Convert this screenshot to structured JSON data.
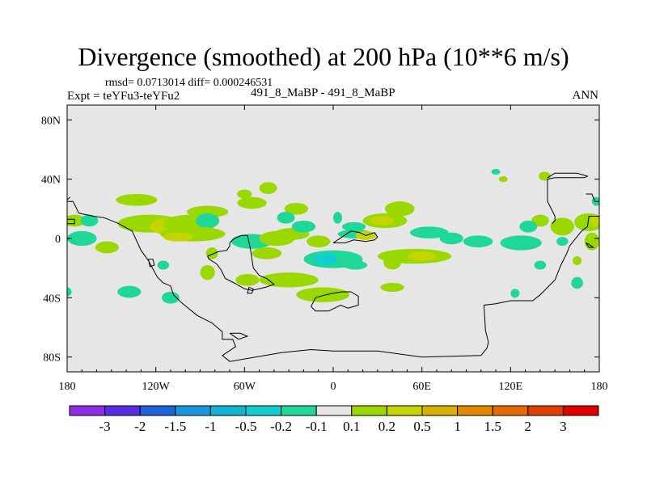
{
  "header": {
    "title": "Divergence (smoothed) at 200 hPa (10**6 m/s)",
    "stats": "rmsd= 0.0713014 diff= 0.000246531",
    "expt": "Expt = teYFu3-teYFu2",
    "center_label": "491_8_MaBP - 491_8_MaBP",
    "season": "ANN"
  },
  "chart_data": {
    "type": "heatmap",
    "title": "Divergence (smoothed) at 200 hPa (10**6 m/s)",
    "xlabel": "",
    "ylabel": "",
    "xlim": [
      -180,
      180
    ],
    "ylim": [
      -90,
      90
    ],
    "x_ticks": [
      {
        "value": -180,
        "label": "180"
      },
      {
        "value": -120,
        "label": "120W"
      },
      {
        "value": -60,
        "label": "60W"
      },
      {
        "value": 0,
        "label": "0"
      },
      {
        "value": 60,
        "label": "60E"
      },
      {
        "value": 120,
        "label": "120E"
      },
      {
        "value": 180,
        "label": "180"
      }
    ],
    "y_ticks": [
      {
        "value": 80,
        "label": "80N"
      },
      {
        "value": 40,
        "label": "40N"
      },
      {
        "value": 0,
        "label": "0"
      },
      {
        "value": -40,
        "label": "40S"
      },
      {
        "value": -80,
        "label": "80S"
      }
    ],
    "colorbar": {
      "colors": [
        "#8e2ce6",
        "#5a2ce6",
        "#1f62d9",
        "#1898d8",
        "#12b3cf",
        "#12cfcf",
        "#20d79a",
        "#e6e6e6",
        "#9ad800",
        "#c6d400",
        "#d8b000",
        "#e08a00",
        "#e26a00",
        "#e04000",
        "#e00000"
      ],
      "labels": [
        "-3",
        "-2",
        "-1.5",
        "-1",
        "-0.5",
        "-0.2",
        "-0.1",
        "0.1",
        "0.2",
        "0.5",
        "1",
        "1.5",
        "2",
        "3"
      ]
    },
    "features": [
      {
        "lon": -133,
        "lat": 26,
        "rlon": 14,
        "rlat": 4,
        "color": "#9ad800"
      },
      {
        "lon": -85,
        "lat": 18,
        "rlon": 14,
        "rlat": 4,
        "color": "#9ad800"
      },
      {
        "lon": -55,
        "lat": 24,
        "rlon": 10,
        "rlat": 4,
        "color": "#9ad800"
      },
      {
        "lon": -25,
        "lat": 20,
        "rlon": 8,
        "rlat": 4,
        "color": "#9ad800"
      },
      {
        "lon": -44,
        "lat": 34,
        "rlon": 6,
        "rlat": 4,
        "color": "#9ad800"
      },
      {
        "lon": -175,
        "lat": 12,
        "rlon": 8,
        "rlat": 4,
        "color": "#9ad800"
      },
      {
        "lon": -124,
        "lat": 10,
        "rlon": 22,
        "rlat": 6,
        "color": "#9ad800"
      },
      {
        "lon": -108,
        "lat": 8,
        "rlon": 16,
        "rlat": 6,
        "color": "#c6d400"
      },
      {
        "lon": -97,
        "lat": 10,
        "rlon": 18,
        "rlat": 6,
        "color": "#9ad800"
      },
      {
        "lon": -85,
        "lat": 12,
        "rlon": 8,
        "rlat": 5,
        "color": "#20d79a"
      },
      {
        "lon": -95,
        "lat": 3,
        "rlon": 22,
        "rlat": 5,
        "color": "#9ad800"
      },
      {
        "lon": -105,
        "lat": 1,
        "rlon": 10,
        "rlat": 3,
        "color": "#c6d400"
      },
      {
        "lon": -170,
        "lat": 0,
        "rlon": 10,
        "rlat": 5,
        "color": "#20d79a"
      },
      {
        "lon": -55,
        "lat": -2,
        "rlon": 14,
        "rlat": 5,
        "color": "#20d79a"
      },
      {
        "lon": -38,
        "lat": 0,
        "rlon": 12,
        "rlat": 5,
        "color": "#9ad800"
      },
      {
        "lon": -28,
        "lat": 3,
        "rlon": 12,
        "rlat": 4,
        "color": "#9ad800"
      },
      {
        "lon": -20,
        "lat": 8,
        "rlon": 8,
        "rlat": 4,
        "color": "#20d79a"
      },
      {
        "lon": -32,
        "lat": 14,
        "rlon": 6,
        "rlat": 4,
        "color": "#20d79a"
      },
      {
        "lon": -10,
        "lat": -2,
        "rlon": 8,
        "rlat": 4,
        "color": "#9ad800"
      },
      {
        "lon": 3,
        "lat": 14,
        "rlon": 3,
        "rlat": 4,
        "color": "#20d79a"
      },
      {
        "lon": 14,
        "lat": 8,
        "rlon": 8,
        "rlat": 3,
        "color": "#20d79a"
      },
      {
        "lon": 35,
        "lat": 12,
        "rlon": 15,
        "rlat": 5,
        "color": "#9ad800"
      },
      {
        "lon": 33,
        "lat": 12,
        "rlon": 8,
        "rlat": 3,
        "color": "#c6d400"
      },
      {
        "lon": 45,
        "lat": 20,
        "rlon": 10,
        "rlat": 5,
        "color": "#9ad800"
      },
      {
        "lon": 15,
        "lat": 3,
        "rlon": 12,
        "rlat": 3,
        "color": "#20d79a"
      },
      {
        "lon": 22,
        "lat": 2,
        "rlon": 7,
        "rlat": 3,
        "color": "#c6d400"
      },
      {
        "lon": 65,
        "lat": 4,
        "rlon": 13,
        "rlat": 4,
        "color": "#20d79a"
      },
      {
        "lon": 80,
        "lat": 0,
        "rlon": 8,
        "rlat": 4,
        "color": "#20d79a"
      },
      {
        "lon": 98,
        "lat": -2,
        "rlon": 10,
        "rlat": 4,
        "color": "#20d79a"
      },
      {
        "lon": 127,
        "lat": -3,
        "rlon": 14,
        "rlat": 5,
        "color": "#20d79a"
      },
      {
        "lon": 140,
        "lat": 12,
        "rlon": 6,
        "rlat": 4,
        "color": "#9ad800"
      },
      {
        "lon": 132,
        "lat": 8,
        "rlon": 6,
        "rlat": 4,
        "color": "#20d79a"
      },
      {
        "lon": 155,
        "lat": 8,
        "rlon": 8,
        "rlat": 6,
        "color": "#9ad800"
      },
      {
        "lon": 155,
        "lat": -2,
        "rlon": 4,
        "rlat": 3,
        "color": "#20d79a"
      },
      {
        "lon": 173,
        "lat": 11,
        "rlon": 10,
        "rlat": 6,
        "color": "#9ad800"
      },
      {
        "lon": 177,
        "lat": 12,
        "rlon": 3,
        "rlat": 4,
        "color": "#c6d400"
      },
      {
        "lon": 175,
        "lat": -2,
        "rlon": 5,
        "rlat": 6,
        "color": "#9ad800"
      },
      {
        "lon": 178,
        "lat": 25,
        "rlon": 3,
        "rlat": 3,
        "color": "#20d79a"
      },
      {
        "lon": 143,
        "lat": 42,
        "rlon": 4,
        "rlat": 3,
        "color": "#9ad800"
      },
      {
        "lon": 110,
        "lat": 45,
        "rlon": 3,
        "rlat": 2,
        "color": "#20d79a"
      },
      {
        "lon": 115,
        "lat": 40,
        "rlon": 3,
        "rlat": 2,
        "color": "#9ad800"
      },
      {
        "lon": 140,
        "lat": -18,
        "rlon": 4,
        "rlat": 3,
        "color": "#20d79a"
      },
      {
        "lon": 165,
        "lat": -15,
        "rlon": 3,
        "rlat": 3,
        "color": "#9ad800"
      },
      {
        "lon": 165,
        "lat": -30,
        "rlon": 4,
        "rlat": 4,
        "color": "#20d79a"
      },
      {
        "lon": -82,
        "lat": -10,
        "rlon": 4,
        "rlat": 4,
        "color": "#9ad800"
      },
      {
        "lon": -85,
        "lat": -23,
        "rlon": 5,
        "rlat": 5,
        "color": "#9ad800"
      },
      {
        "lon": -58,
        "lat": -28,
        "rlon": 8,
        "rlat": 4,
        "color": "#9ad800"
      },
      {
        "lon": -45,
        "lat": -10,
        "rlon": 10,
        "rlat": 4,
        "color": "#9ad800"
      },
      {
        "lon": 0,
        "lat": -14,
        "rlon": 20,
        "rlat": 6,
        "color": "#20d79a"
      },
      {
        "lon": -5,
        "lat": -14,
        "rlon": 8,
        "rlat": 4,
        "color": "#12cfcf"
      },
      {
        "lon": 55,
        "lat": -12,
        "rlon": 25,
        "rlat": 5,
        "color": "#9ad800"
      },
      {
        "lon": 60,
        "lat": -12,
        "rlon": 10,
        "rlat": 3,
        "color": "#c6d400"
      },
      {
        "lon": 40,
        "lat": -16,
        "rlon": 6,
        "rlat": 5,
        "color": "#9ad800"
      },
      {
        "lon": 15,
        "lat": -18,
        "rlon": 8,
        "rlat": 3,
        "color": "#20d79a"
      },
      {
        "lon": -30,
        "lat": -28,
        "rlon": 20,
        "rlat": 5,
        "color": "#9ad800"
      },
      {
        "lon": -7,
        "lat": -38,
        "rlon": 18,
        "rlat": 5,
        "color": "#9ad800"
      },
      {
        "lon": 40,
        "lat": -33,
        "rlon": 8,
        "rlat": 3,
        "color": "#9ad800"
      },
      {
        "lon": -138,
        "lat": -36,
        "rlon": 8,
        "rlat": 4,
        "color": "#20d79a"
      },
      {
        "lon": -110,
        "lat": -40,
        "rlon": 6,
        "rlat": 4,
        "color": "#20d79a"
      },
      {
        "lon": -180,
        "lat": -36,
        "rlon": 3,
        "rlat": 3,
        "color": "#20d79a"
      },
      {
        "lon": -153,
        "lat": -6,
        "rlon": 8,
        "rlat": 4,
        "color": "#9ad800"
      },
      {
        "lon": -165,
        "lat": 12,
        "rlon": 6,
        "rlat": 4,
        "color": "#20d79a"
      },
      {
        "lon": -115,
        "lat": -18,
        "rlon": 4,
        "rlat": 3,
        "color": "#20d79a"
      },
      {
        "lon": -60,
        "lat": 30,
        "rlon": 5,
        "rlat": 3,
        "color": "#9ad800"
      },
      {
        "lon": 123,
        "lat": -37,
        "rlon": 3,
        "rlat": 3,
        "color": "#20d79a"
      }
    ],
    "coastlines": [
      [
        [
          -180,
          25
        ],
        [
          -176,
          25
        ],
        [
          -172,
          17
        ],
        [
          -162,
          15
        ],
        [
          -155,
          14
        ],
        [
          -145,
          10
        ],
        [
          -136,
          5
        ],
        [
          -130,
          -8
        ],
        [
          -125,
          -15
        ],
        [
          -119,
          -26
        ],
        [
          -115,
          -30
        ],
        [
          -110,
          -32
        ],
        [
          -108,
          -38
        ],
        [
          -103,
          -43
        ],
        [
          -92,
          -52
        ],
        [
          -82,
          -57
        ],
        [
          -75,
          -63
        ],
        [
          -75,
          -68
        ],
        [
          -68,
          -68
        ],
        [
          -66,
          -73
        ],
        [
          -75,
          -79
        ],
        [
          -70,
          -83
        ],
        [
          -35,
          -77
        ],
        [
          -15,
          -75
        ],
        [
          0,
          -76
        ],
        [
          30,
          -76
        ],
        [
          60,
          -80
        ],
        [
          100,
          -79
        ],
        [
          104,
          -74
        ],
        [
          105,
          -70
        ],
        [
          103,
          -62
        ],
        [
          102,
          -45
        ],
        [
          110,
          -44
        ],
        [
          120,
          -42
        ],
        [
          135,
          -42
        ],
        [
          140,
          -38
        ],
        [
          148,
          -30
        ],
        [
          150,
          -28
        ],
        [
          154,
          -18
        ],
        [
          158,
          -10
        ],
        [
          160,
          -5
        ],
        [
          168,
          5
        ],
        [
          172,
          8
        ],
        [
          173,
          15
        ],
        [
          180,
          15
        ]
      ],
      [
        [
          -125,
          -14
        ],
        [
          -122,
          -14
        ],
        [
          -121,
          -18
        ],
        [
          -124,
          -19
        ],
        [
          -125,
          -14
        ]
      ],
      [
        [
          -85,
          -12
        ],
        [
          -78,
          -9
        ],
        [
          -72,
          -8
        ],
        [
          -70,
          -5
        ],
        [
          -70,
          -3
        ],
        [
          -67,
          0
        ],
        [
          -62,
          2
        ],
        [
          -58,
          2
        ],
        [
          -56,
          -7
        ],
        [
          -55,
          -14
        ],
        [
          -54,
          -20
        ],
        [
          -50,
          -25
        ],
        [
          -45,
          -27
        ],
        [
          -40,
          -31
        ],
        [
          -46,
          -33
        ],
        [
          -55,
          -35
        ],
        [
          -60,
          -34
        ],
        [
          -67,
          -30
        ],
        [
          -73,
          -27
        ],
        [
          -76,
          -21
        ],
        [
          -79,
          -17
        ],
        [
          -84,
          -14
        ],
        [
          -85,
          -12
        ]
      ],
      [
        [
          -15,
          -46
        ],
        [
          -12,
          -40
        ],
        [
          -5,
          -38
        ],
        [
          0,
          -37
        ],
        [
          6,
          -36
        ],
        [
          12,
          -36
        ],
        [
          17,
          -39
        ],
        [
          17,
          -45
        ],
        [
          10,
          -47
        ],
        [
          5,
          -45
        ],
        [
          -3,
          -49
        ],
        [
          -12,
          -49
        ],
        [
          -15,
          -46
        ]
      ],
      [
        [
          0,
          -3
        ],
        [
          6,
          1
        ],
        [
          12,
          5
        ],
        [
          18,
          4
        ],
        [
          22,
          2
        ],
        [
          25,
          3
        ],
        [
          28,
          4
        ],
        [
          30,
          1
        ],
        [
          28,
          -1
        ],
        [
          22,
          -2
        ],
        [
          14,
          -1
        ],
        [
          8,
          -3
        ],
        [
          0,
          -3
        ]
      ],
      [
        [
          -54,
          -34
        ],
        [
          -55,
          -37
        ],
        [
          -58,
          -37
        ],
        [
          -57,
          -33
        ],
        [
          -54,
          -34
        ]
      ],
      [
        [
          -70,
          -64
        ],
        [
          -63,
          -64
        ],
        [
          -58,
          -66
        ],
        [
          -64,
          -68
        ],
        [
          -70,
          -64
        ]
      ],
      [
        [
          -180,
          13
        ],
        [
          -175,
          13
        ],
        [
          -175,
          10
        ],
        [
          -180,
          10
        ]
      ],
      [
        [
          148,
          10
        ],
        [
          150,
          12
        ],
        [
          150,
          15
        ],
        [
          145,
          25
        ],
        [
          145,
          40
        ],
        [
          150,
          41
        ],
        [
          160,
          41
        ],
        [
          170,
          41
        ],
        [
          172,
          42
        ],
        [
          165,
          44
        ],
        [
          150,
          44
        ],
        [
          145,
          41
        ]
      ],
      [
        [
          171,
          -3
        ],
        [
          173,
          -4
        ],
        [
          176,
          -6
        ],
        [
          173,
          -6
        ],
        [
          171,
          -3
        ]
      ],
      [
        [
          171,
          30
        ],
        [
          175,
          30
        ],
        [
          177,
          25
        ],
        [
          180,
          25
        ]
      ],
      [
        [
          -180,
          26
        ],
        [
          -178,
          28
        ]
      ]
    ]
  }
}
